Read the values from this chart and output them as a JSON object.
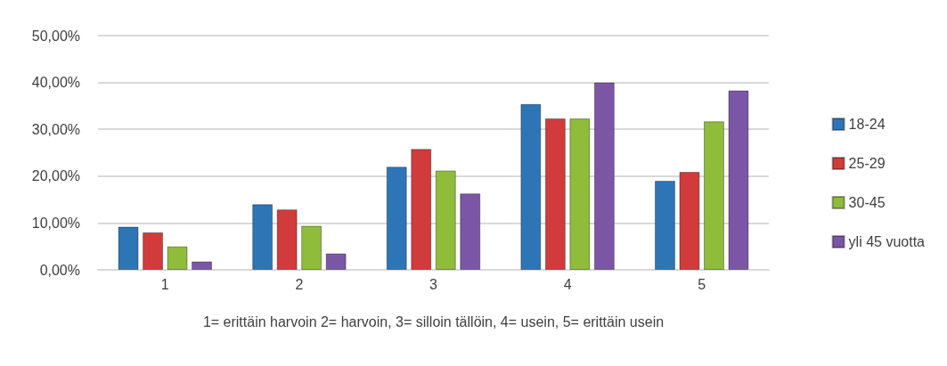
{
  "chart_data": {
    "type": "bar",
    "xlabel": "1= erittäin harvoin 2= harvoin, 3= silloin tällöin, 4= usein, 5= erittäin usein",
    "categories": [
      "1",
      "2",
      "3",
      "4",
      "5"
    ],
    "series": [
      {
        "name": "18-24",
        "color": "#2e75b6",
        "values": [
          9.2,
          14.0,
          22.0,
          35.4,
          19.0
        ]
      },
      {
        "name": "25-29",
        "color": "#d13b3b",
        "values": [
          8.0,
          12.9,
          25.8,
          32.3,
          20.9
        ]
      },
      {
        "name": "30-45",
        "color": "#8fbc3a",
        "values": [
          5.0,
          9.4,
          21.2,
          32.3,
          31.7
        ]
      },
      {
        "name": "yli 45 vuotta",
        "color": "#7b56a6",
        "values": [
          1.8,
          3.5,
          16.3,
          40.0,
          38.3
        ]
      }
    ],
    "ylim": [
      0,
      50
    ],
    "yticks": [
      {
        "value": 0,
        "label": "0,00%"
      },
      {
        "value": 10,
        "label": "10,00%"
      },
      {
        "value": 20,
        "label": "20,00%"
      },
      {
        "value": 30,
        "label": "30,00%"
      },
      {
        "value": 40,
        "label": "40,00%"
      },
      {
        "value": 50,
        "label": "50,00%"
      }
    ],
    "grid": "y",
    "legend": "right"
  }
}
